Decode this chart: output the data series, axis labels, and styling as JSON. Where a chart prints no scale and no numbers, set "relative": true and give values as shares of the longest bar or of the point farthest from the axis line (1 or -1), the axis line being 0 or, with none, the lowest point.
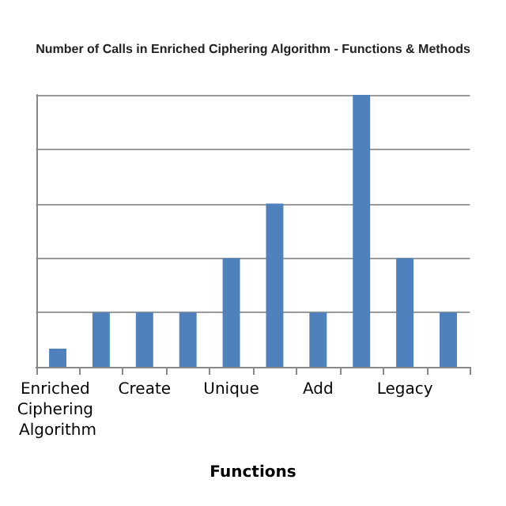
{
  "chart_data": {
    "type": "bar",
    "title": "Number of Calls in Enriched Ciphering Algorithm - Functions & Methods",
    "xlabel": "Functions",
    "categories": [
      "Enriched Ciphering Algorithm",
      null,
      "Create",
      null,
      "Unique",
      null,
      "Add",
      null,
      "Legacy",
      null
    ],
    "values": [
      0.067,
      0.2,
      0.2,
      0.2,
      0.4,
      0.6,
      0.2,
      1,
      0.4,
      0.2
    ],
    "color": "#4f81bd",
    "relative": true,
    "grid": "y"
  }
}
